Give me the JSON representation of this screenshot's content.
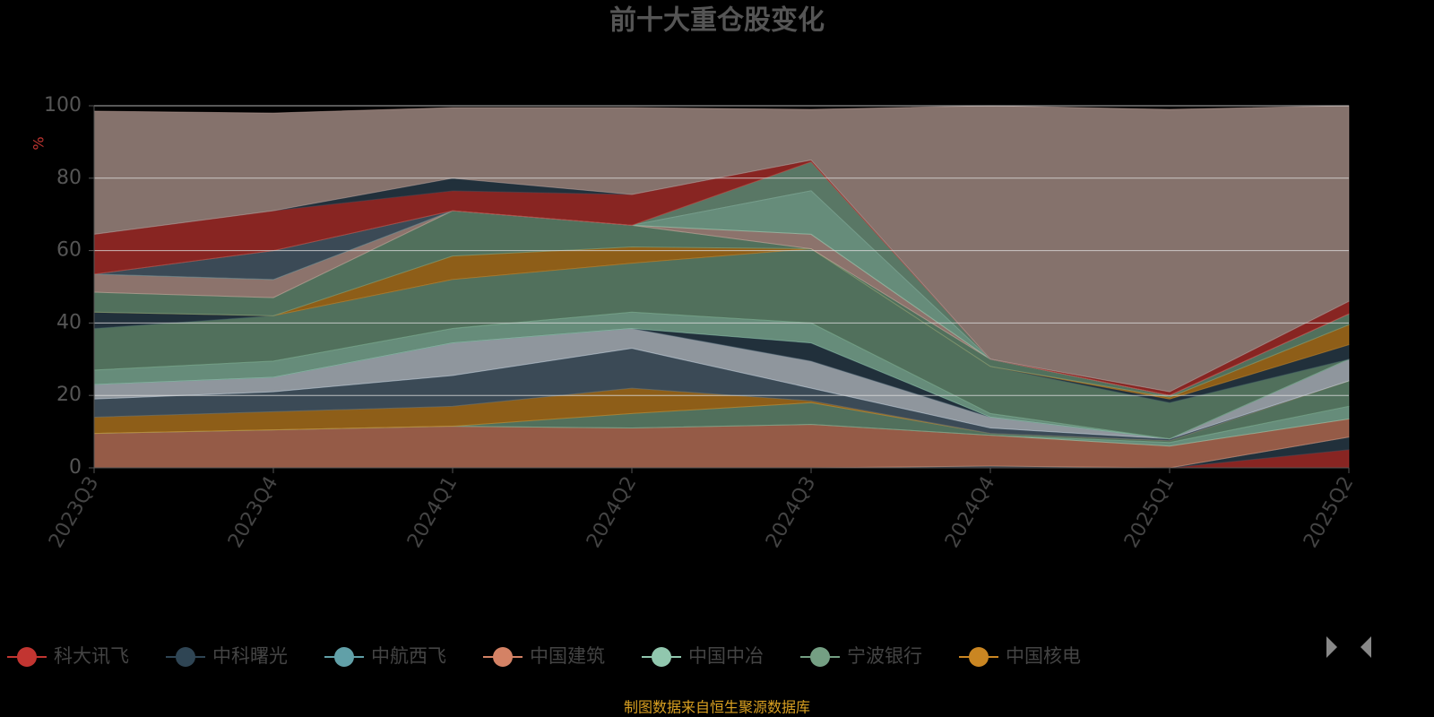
{
  "chart_data": {
    "type": "stacked_area",
    "title": "前十大重仓股变化",
    "y_label": "%",
    "source": "制图数据来自恒生聚源数据库",
    "categories": [
      "2023Q3",
      "2023Q4",
      "2024Q1",
      "2024Q2",
      "2024Q3",
      "2024Q4",
      "2025Q1",
      "2025Q2"
    ],
    "ylim": [
      0,
      100
    ],
    "yticks": [
      0,
      20,
      40,
      60,
      80,
      100
    ],
    "grid": true,
    "area_opacity": 0.7,
    "series": [
      {
        "name": "科大讯飞",
        "color": "#c23531",
        "values": [
          0,
          0,
          0,
          0,
          0,
          0,
          0,
          5
        ]
      },
      {
        "name": "中科曙光",
        "color": "#2f4554",
        "values": [
          0,
          0,
          0,
          0,
          0,
          0.5,
          0,
          3.5
        ]
      },
      {
        "name": "中航西飞",
        "color": "#61a0a8",
        "values": [
          0,
          0,
          0,
          0,
          0,
          0,
          0,
          0
        ]
      },
      {
        "name": "中国建筑",
        "color": "#d48265",
        "values": [
          9.5,
          10.5,
          11.5,
          11,
          12,
          8.5,
          6,
          5
        ]
      },
      {
        "name": "中国中冶",
        "color": "#91c7ae",
        "values": [
          0,
          0,
          0,
          0,
          0,
          0,
          1,
          3.5
        ]
      },
      {
        "name": "宁波银行",
        "color": "#749f83",
        "values": [
          0,
          0,
          0,
          4,
          6,
          0.5,
          0.5,
          7
        ]
      },
      {
        "name": "中国核电",
        "color": "#ca8622",
        "values": [
          4.5,
          5,
          5.5,
          7,
          0.5,
          0,
          0,
          0
        ]
      },
      {
        "color": "#546a7a",
        "values": [
          5,
          5.5,
          8.5,
          11,
          3.5,
          1.5,
          0.5,
          0
        ]
      },
      {
        "color": "#ccd5df",
        "values": [
          4,
          4,
          9,
          5.5,
          7.5,
          3,
          0,
          6
        ]
      },
      {
        "color": "#2f4554",
        "values": [
          0,
          0,
          0,
          0,
          5,
          0,
          0,
          0
        ]
      },
      {
        "color": "#91c7ae",
        "values": [
          4,
          4.5,
          4,
          4.5,
          5.5,
          1,
          0,
          0
        ]
      },
      {
        "color": "#749f83",
        "values": [
          11.5,
          12.5,
          13.5,
          13.5,
          20.5,
          13,
          10,
          0
        ]
      },
      {
        "color": "#2f4554",
        "values": [
          4.5,
          0,
          0,
          0,
          0,
          0,
          1,
          4
        ]
      },
      {
        "color": "#ca8622",
        "values": [
          0,
          0,
          6.5,
          4.5,
          0,
          0,
          0.5,
          5.5
        ]
      },
      {
        "color": "#749f83",
        "values": [
          5.5,
          5,
          12.5,
          6,
          0,
          2,
          0.5,
          3
        ]
      },
      {
        "color": "#c8a49a",
        "values": [
          5,
          5,
          0,
          0,
          4,
          0,
          0,
          0
        ]
      },
      {
        "color": "#91c7ae",
        "values": [
          0,
          0,
          0,
          0,
          12,
          0,
          0,
          0
        ]
      },
      {
        "color": "#546a7a",
        "values": [
          0,
          8,
          0,
          0,
          0,
          0,
          0,
          0
        ]
      },
      {
        "color": "#7faa90",
        "values": [
          0,
          0,
          0,
          0,
          8,
          0,
          0,
          0
        ]
      },
      {
        "color": "#c23531",
        "values": [
          11,
          11,
          5.5,
          8.5,
          0.5,
          0,
          1,
          3.5
        ]
      },
      {
        "color": "#2f4554",
        "values": [
          0,
          0,
          3.5,
          0,
          0,
          0,
          0,
          0
        ]
      },
      {
        "color": "#bda29a",
        "values": [
          34,
          27,
          19.5,
          24,
          14,
          70,
          78,
          54
        ]
      }
    ]
  }
}
